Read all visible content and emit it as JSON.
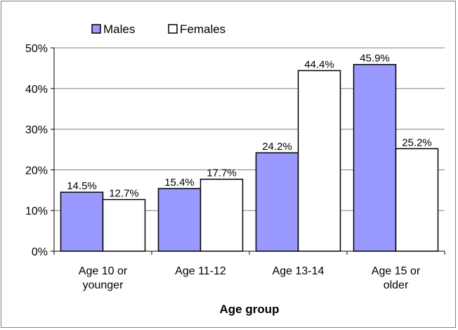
{
  "chart_data": {
    "type": "bar",
    "categories": [
      [
        "Age 10 or",
        "younger"
      ],
      [
        "Age 11-12"
      ],
      [
        "Age 13-14"
      ],
      [
        "Age 15 or",
        "older"
      ]
    ],
    "series": [
      {
        "name": "Males",
        "values": [
          14.5,
          15.4,
          24.2,
          45.9
        ],
        "labels": [
          "14.5%",
          "15.4%",
          "24.2%",
          "45.9%"
        ],
        "color": "#9999FF"
      },
      {
        "name": "Females",
        "values": [
          12.7,
          17.7,
          44.4,
          25.2
        ],
        "labels": [
          "12.7%",
          "17.7%",
          "44.4%",
          "25.2%"
        ],
        "color": "#FFFFFF"
      }
    ],
    "xlabel": "Age group",
    "ylabel": "",
    "ylim": [
      0,
      50
    ],
    "yticks": [
      "0%",
      "10%",
      "20%",
      "30%",
      "40%",
      "50%"
    ],
    "grid": true,
    "legend": "top-left"
  }
}
